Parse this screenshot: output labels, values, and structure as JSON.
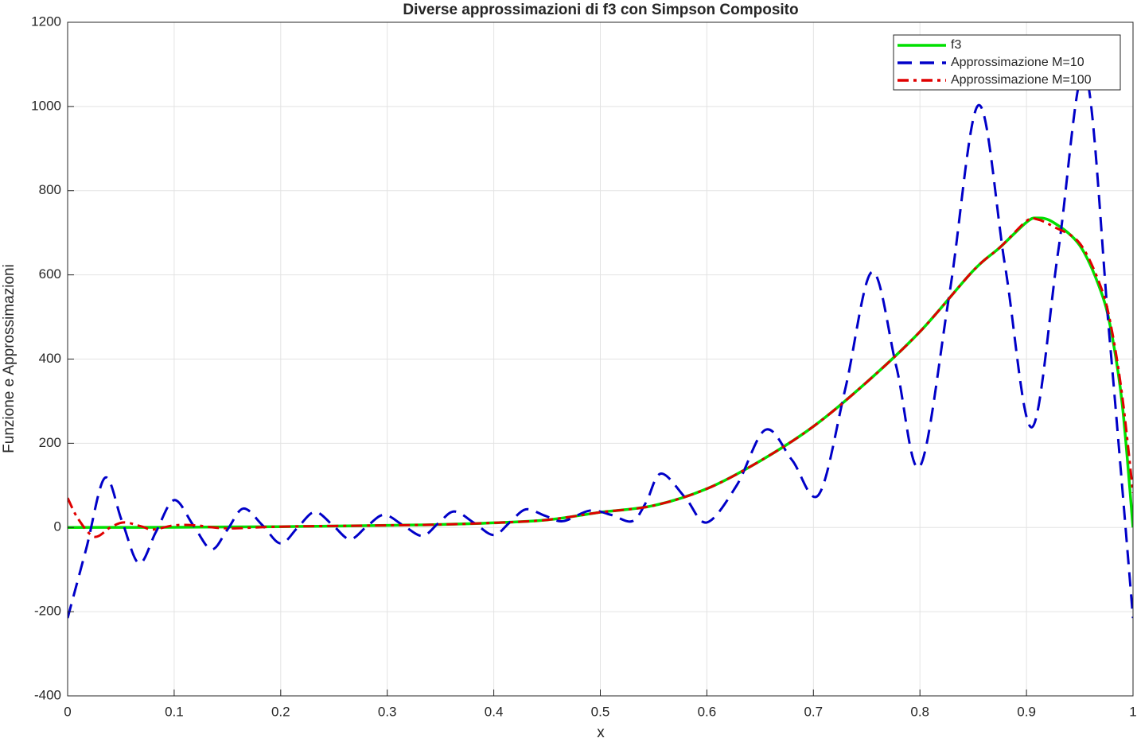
{
  "chart_data": {
    "type": "line",
    "title": "Diverse approssimazioni di f3 con Simpson Composito",
    "xlabel": "x",
    "ylabel": "Funzione e Approssimazioni",
    "xlim": [
      0,
      1
    ],
    "xticks": [
      0,
      0.1,
      0.2,
      0.3,
      0.4,
      0.5,
      0.6,
      0.7,
      0.8,
      0.9,
      1
    ],
    "ylim": [
      -400,
      1200
    ],
    "yticks": [
      -400,
      -200,
      0,
      200,
      400,
      600,
      800,
      1000,
      1200
    ],
    "grid": true,
    "legend": "northeast",
    "series": [
      {
        "name": "f3",
        "color": "#00e000",
        "dash": "solid",
        "x": [
          0,
          0.1,
          0.2,
          0.3,
          0.35,
          0.4,
          0.45,
          0.5,
          0.55,
          0.6,
          0.65,
          0.7,
          0.75,
          0.8,
          0.85,
          0.875,
          0.9,
          0.91,
          0.925,
          0.95,
          0.97,
          0.98,
          0.99,
          1
        ],
        "values": [
          0,
          0.5,
          2,
          5,
          7,
          11,
          18,
          36,
          52,
          92,
          158,
          240,
          345,
          465,
          610,
          665,
          725,
          735,
          725,
          670,
          560,
          460,
          290,
          0
        ]
      },
      {
        "name": "Approssimazione M=10",
        "color": "#0000c8",
        "dash": "dashed",
        "x": [
          0,
          0.0175,
          0.035,
          0.051,
          0.067,
          0.083,
          0.1,
          0.118,
          0.135,
          0.15,
          0.165,
          0.183,
          0.2,
          0.216,
          0.232,
          0.249,
          0.265,
          0.281,
          0.297,
          0.315,
          0.333,
          0.348,
          0.363,
          0.382,
          0.4,
          0.415,
          0.43,
          0.448,
          0.465,
          0.49,
          0.51,
          0.53,
          0.543,
          0.557,
          0.58,
          0.6,
          0.628,
          0.655,
          0.68,
          0.705,
          0.73,
          0.755,
          0.778,
          0.8,
          0.828,
          0.855,
          0.88,
          0.905,
          0.93,
          0.955,
          0.978,
          1
        ],
        "values": [
          -215,
          -50,
          118,
          15,
          -85,
          -10,
          65,
          5,
          -52,
          -5,
          45,
          5,
          -38,
          0,
          37,
          5,
          -28,
          3,
          30,
          5,
          -20,
          10,
          38,
          10,
          -18,
          12,
          43,
          28,
          15,
          40,
          30,
          15,
          60,
          128,
          70,
          12,
          100,
          232,
          160,
          78,
          330,
          607,
          380,
          145,
          560,
          1003,
          620,
          238,
          660,
          1080,
          450,
          -215
        ]
      },
      {
        "name": "Approssimazione M=100",
        "color": "#e00000",
        "dash": "dashdot",
        "x": [
          0,
          0.01,
          0.025,
          0.04,
          0.053,
          0.07,
          0.08,
          0.1,
          0.12,
          0.15,
          0.2,
          0.3,
          0.35,
          0.4,
          0.45,
          0.5,
          0.55,
          0.6,
          0.65,
          0.7,
          0.75,
          0.8,
          0.85,
          0.875,
          0.9,
          0.91,
          0.925,
          0.95,
          0.97,
          0.98,
          0.99,
          1
        ],
        "values": [
          70,
          20,
          -22,
          0,
          12,
          2,
          -5,
          5,
          5,
          -2,
          2,
          5,
          7,
          11,
          18,
          36,
          52,
          92,
          158,
          240,
          345,
          465,
          610,
          665,
          728,
          732,
          715,
          675,
          570,
          470,
          310,
          82
        ]
      }
    ]
  }
}
